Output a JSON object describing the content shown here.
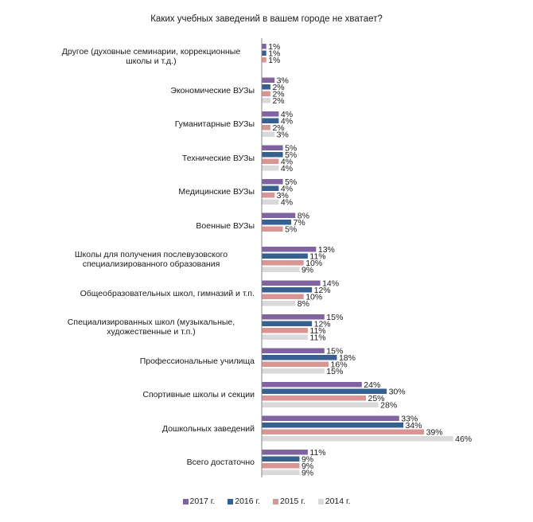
{
  "chart_data": {
    "type": "bar",
    "orientation": "horizontal",
    "title": "Каких учебных заведений в вашем городе не хватает?",
    "xlabel": "",
    "ylabel": "",
    "xlim": [
      0,
      46
    ],
    "grid": false,
    "legend_position": "bottom",
    "value_suffix": "%",
    "categories": [
      "Другое (духовные семинарии, коррекционные школы и т.д.)",
      "Экономические ВУЗы",
      "Гуманитарные ВУЗы",
      "Технические ВУЗы",
      "Медицинские ВУЗы",
      "Военные ВУЗы",
      "Школы для получения послевузовского специализированного образования",
      "Общеобразовательных школ, гимназий и т.п.",
      "Специализированных школ (музыкальные, художественные и т.п.)",
      "Профессиональные училища",
      "Спортивные школы и секции",
      "Дошкольных заведений",
      "Всего достаточно"
    ],
    "category_lines": [
      [
        "Другое (духовные семинарии, коррекционные",
        "школы и т.д.)"
      ],
      [
        "Экономические ВУЗы"
      ],
      [
        "Гуманитарные ВУЗы"
      ],
      [
        "Технические ВУЗы"
      ],
      [
        "Медицинские ВУЗы"
      ],
      [
        "Военные ВУЗы"
      ],
      [
        "Школы для получения послевузовского",
        "специализированного образования"
      ],
      [
        "Общеобразовательных школ, гимназий и т.п."
      ],
      [
        "Специализированных школ (музыкальные,",
        "художественные и т.п.)"
      ],
      [
        "Профессиональные училища"
      ],
      [
        "Спортивные школы и секции"
      ],
      [
        "Дошкольных заведений"
      ],
      [
        "Всего достаточно"
      ]
    ],
    "series": [
      {
        "name": "2017 г.",
        "color": "#8064a2",
        "values": [
          1,
          3,
          4,
          5,
          5,
          8,
          13,
          14,
          15,
          15,
          24,
          33,
          11
        ]
      },
      {
        "name": "2016 г.",
        "color": "#366092",
        "values": [
          1,
          2,
          4,
          5,
          4,
          7,
          11,
          12,
          12,
          18,
          30,
          34,
          9
        ]
      },
      {
        "name": "2015 г.",
        "color": "#d99594",
        "values": [
          1,
          2,
          2,
          4,
          3,
          5,
          10,
          10,
          11,
          16,
          25,
          39,
          9
        ]
      },
      {
        "name": "2014 г.",
        "color": "#d9d9d9",
        "values": [
          null,
          2,
          3,
          4,
          4,
          null,
          9,
          8,
          11,
          15,
          28,
          46,
          9
        ]
      }
    ]
  }
}
